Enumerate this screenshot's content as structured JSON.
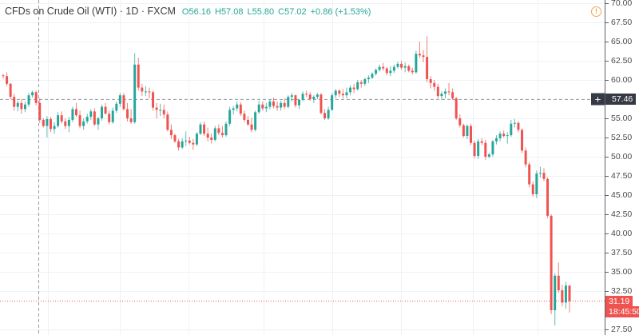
{
  "header": {
    "title": "CFDs on Crude Oil (WTI) · 1D · FXCM",
    "open": "O56.16",
    "high": "H57.08",
    "low": "L55.80",
    "close": "C57.02",
    "change": "+0.86 (+1.53%)"
  },
  "icons": {
    "warning": "!"
  },
  "axis": {
    "ticks": [
      "70.00",
      "67.50",
      "65.00",
      "62.50",
      "60.00",
      "55.00",
      "52.50",
      "50.00",
      "47.50",
      "45.00",
      "42.50",
      "40.00",
      "37.50",
      "35.00",
      "32.50",
      "27.50"
    ],
    "crosshair_price": "57.46",
    "crosshair_plus": "+",
    "last_price": "31.19",
    "countdown": "18:45:50"
  },
  "colors": {
    "up": "#26a69a",
    "down": "#ef5350",
    "grid": "#eef2f6",
    "crosshair": "#9598a1",
    "axis": "#5d606b"
  },
  "chart_data": {
    "type": "candlestick",
    "title": "CFDs on Crude Oil (WTI) · 1D · FXCM",
    "ylim": [
      27.5,
      70.0
    ],
    "y_ticks": [
      27.5,
      32.5,
      35.0,
      37.5,
      40.0,
      42.5,
      45.0,
      47.5,
      50.0,
      52.5,
      55.0,
      57.46,
      60.0,
      62.5,
      65.0,
      67.5,
      70.0
    ],
    "crosshair_price": 57.46,
    "last_price": 31.19,
    "legend_ohlc": {
      "open": 56.16,
      "high": 57.08,
      "low": 55.8,
      "close": 57.02,
      "change": 0.86,
      "change_pct": 1.53
    },
    "candles": [
      [
        60.6,
        60.8,
        60.2,
        60.5
      ],
      [
        60.5,
        61.0,
        59.2,
        59.5
      ],
      [
        59.5,
        59.6,
        57.5,
        57.8
      ],
      [
        57.8,
        58.2,
        56.0,
        56.5
      ],
      [
        56.5,
        57.3,
        55.9,
        57.0
      ],
      [
        57.0,
        57.5,
        55.6,
        56.2
      ],
      [
        56.2,
        57.2,
        55.8,
        56.8
      ],
      [
        56.8,
        58.3,
        56.5,
        58.0
      ],
      [
        58.0,
        58.6,
        57.7,
        58.4
      ],
      [
        58.4,
        58.6,
        56.7,
        57.0
      ],
      [
        57.0,
        57.6,
        54.4,
        54.8
      ],
      [
        54.8,
        55.0,
        53.8,
        54.0
      ],
      [
        54.0,
        55.3,
        52.5,
        54.9
      ],
      [
        54.9,
        55.2,
        53.2,
        53.6
      ],
      [
        53.6,
        54.5,
        53.0,
        54.0
      ],
      [
        54.0,
        55.8,
        53.8,
        55.4
      ],
      [
        55.4,
        55.9,
        54.3,
        54.6
      ],
      [
        54.6,
        55.0,
        53.6,
        54.0
      ],
      [
        54.0,
        55.2,
        53.2,
        54.8
      ],
      [
        54.8,
        56.5,
        54.5,
        56.2
      ],
      [
        56.2,
        57.0,
        55.2,
        55.4
      ],
      [
        55.4,
        56.0,
        53.7,
        54.0
      ],
      [
        54.0,
        55.0,
        53.5,
        54.6
      ],
      [
        54.6,
        55.6,
        54.3,
        55.2
      ],
      [
        55.2,
        56.2,
        54.8,
        55.9
      ],
      [
        55.9,
        56.3,
        54.0,
        54.2
      ],
      [
        54.2,
        55.2,
        53.5,
        55.0
      ],
      [
        55.0,
        56.8,
        54.7,
        56.5
      ],
      [
        56.5,
        57.0,
        55.5,
        55.6
      ],
      [
        55.6,
        56.0,
        54.2,
        54.5
      ],
      [
        54.5,
        56.4,
        54.3,
        56.0
      ],
      [
        56.0,
        57.2,
        55.7,
        56.9
      ],
      [
        56.9,
        58.3,
        56.5,
        58.0
      ],
      [
        58.0,
        58.3,
        56.0,
        56.2
      ],
      [
        56.2,
        57.0,
        54.6,
        55.0
      ],
      [
        55.0,
        56.2,
        54.3,
        54.5
      ],
      [
        54.5,
        63.5,
        54.3,
        62.0
      ],
      [
        62.0,
        62.9,
        58.6,
        59.0
      ],
      [
        59.0,
        59.5,
        57.9,
        58.5
      ],
      [
        58.5,
        59.2,
        57.9,
        58.5
      ],
      [
        58.5,
        59.0,
        57.6,
        58.4
      ],
      [
        58.4,
        58.6,
        56.0,
        56.4
      ],
      [
        56.4,
        57.0,
        55.0,
        56.1
      ],
      [
        56.1,
        56.9,
        55.3,
        56.1
      ],
      [
        56.1,
        56.8,
        55.0,
        55.5
      ],
      [
        55.5,
        55.9,
        53.3,
        53.5
      ],
      [
        53.5,
        54.2,
        52.3,
        52.8
      ],
      [
        52.8,
        53.0,
        51.8,
        52.0
      ],
      [
        52.0,
        52.3,
        50.8,
        51.2
      ],
      [
        51.2,
        52.4,
        51.0,
        52.0
      ],
      [
        52.0,
        53.3,
        51.4,
        52.1
      ],
      [
        52.1,
        52.6,
        51.6,
        51.8
      ],
      [
        51.8,
        52.3,
        50.9,
        51.6
      ],
      [
        51.6,
        53.2,
        51.4,
        53.0
      ],
      [
        53.0,
        54.5,
        52.8,
        54.2
      ],
      [
        54.2,
        54.6,
        52.7,
        53.0
      ],
      [
        53.0,
        53.8,
        52.0,
        52.5
      ],
      [
        52.5,
        53.0,
        51.7,
        52.2
      ],
      [
        52.2,
        54.0,
        52.0,
        53.7
      ],
      [
        53.7,
        54.2,
        52.8,
        53.1
      ],
      [
        53.1,
        54.0,
        52.5,
        52.8
      ],
      [
        52.8,
        54.6,
        52.6,
        54.3
      ],
      [
        54.3,
        56.5,
        54.0,
        56.1
      ],
      [
        56.1,
        56.6,
        55.5,
        56.3
      ],
      [
        56.3,
        57.2,
        55.9,
        56.8
      ],
      [
        56.8,
        57.1,
        55.3,
        55.6
      ],
      [
        55.6,
        56.0,
        54.5,
        54.8
      ],
      [
        54.8,
        55.3,
        54.0,
        54.2
      ],
      [
        54.2,
        55.1,
        53.2,
        53.5
      ],
      [
        53.5,
        56.0,
        53.3,
        55.8
      ],
      [
        55.8,
        57.3,
        55.6,
        56.8
      ],
      [
        56.8,
        57.2,
        56.0,
        56.3
      ],
      [
        56.3,
        57.0,
        55.8,
        56.5
      ],
      [
        56.5,
        57.5,
        56.2,
        57.2
      ],
      [
        57.2,
        57.7,
        56.3,
        56.6
      ],
      [
        56.6,
        57.2,
        56.0,
        56.4
      ],
      [
        56.4,
        57.3,
        56.0,
        57.0
      ],
      [
        57.0,
        57.6,
        56.2,
        56.5
      ],
      [
        56.5,
        58.0,
        56.3,
        57.8
      ],
      [
        57.8,
        58.3,
        57.2,
        58.0
      ],
      [
        58.0,
        58.1,
        56.4,
        56.7
      ],
      [
        56.7,
        57.5,
        56.2,
        57.4
      ],
      [
        57.4,
        58.5,
        57.2,
        58.2
      ],
      [
        58.2,
        58.6,
        57.8,
        58.1
      ],
      [
        58.1,
        58.4,
        57.3,
        57.5
      ],
      [
        57.5,
        58.0,
        57.0,
        57.8
      ],
      [
        57.8,
        58.3,
        57.5,
        58.1
      ],
      [
        58.1,
        58.3,
        55.5,
        55.7
      ],
      [
        55.7,
        56.2,
        54.8,
        55.0
      ],
      [
        55.0,
        56.5,
        54.8,
        56.1
      ],
      [
        56.1,
        58.3,
        56.0,
        58.0
      ],
      [
        58.0,
        58.8,
        57.6,
        58.6
      ],
      [
        58.6,
        58.8,
        57.8,
        58.2
      ],
      [
        58.2,
        58.8,
        57.6,
        58.0
      ],
      [
        58.0,
        59.0,
        57.6,
        58.4
      ],
      [
        58.4,
        59.3,
        58.0,
        59.0
      ],
      [
        59.0,
        59.5,
        58.3,
        58.8
      ],
      [
        58.8,
        60.0,
        58.6,
        59.7
      ],
      [
        59.7,
        60.0,
        59.0,
        59.5
      ],
      [
        59.5,
        60.3,
        59.2,
        60.1
      ],
      [
        60.1,
        60.6,
        59.6,
        60.3
      ],
      [
        60.3,
        61.0,
        60.1,
        60.8
      ],
      [
        60.8,
        61.5,
        60.6,
        61.3
      ],
      [
        61.3,
        62.0,
        61.1,
        61.7
      ],
      [
        61.7,
        62.2,
        61.2,
        61.5
      ],
      [
        61.5,
        61.7,
        60.6,
        60.9
      ],
      [
        60.9,
        61.8,
        60.5,
        61.2
      ],
      [
        61.2,
        62.0,
        60.9,
        61.7
      ],
      [
        61.7,
        62.4,
        61.5,
        62.1
      ],
      [
        62.1,
        62.5,
        61.3,
        61.6
      ],
      [
        61.6,
        62.3,
        61.0,
        61.8
      ],
      [
        61.8,
        62.0,
        61.0,
        61.2
      ],
      [
        61.2,
        61.6,
        60.7,
        61.0
      ],
      [
        61.0,
        63.8,
        60.8,
        63.4
      ],
      [
        63.4,
        65.0,
        62.9,
        63.2
      ],
      [
        63.2,
        63.9,
        62.3,
        63.0
      ],
      [
        63.0,
        65.7,
        59.7,
        60.1
      ],
      [
        60.1,
        60.5,
        58.9,
        59.6
      ],
      [
        59.6,
        60.0,
        58.6,
        59.1
      ],
      [
        59.1,
        59.5,
        57.6,
        57.9
      ],
      [
        57.9,
        58.5,
        57.4,
        58.2
      ],
      [
        58.2,
        58.9,
        57.6,
        58.5
      ],
      [
        58.5,
        59.6,
        58.0,
        58.4
      ],
      [
        58.4,
        58.9,
        57.4,
        57.6
      ],
      [
        57.6,
        57.8,
        54.8,
        55.0
      ],
      [
        55.0,
        55.5,
        53.8,
        54.1
      ],
      [
        54.1,
        54.3,
        52.5,
        52.7
      ],
      [
        52.7,
        54.2,
        52.3,
        54.0
      ],
      [
        54.0,
        54.3,
        51.5,
        51.8
      ],
      [
        51.8,
        52.1,
        49.8,
        50.1
      ],
      [
        50.1,
        52.3,
        49.7,
        52.0
      ],
      [
        52.0,
        52.4,
        51.5,
        51.8
      ],
      [
        51.8,
        52.2,
        49.6,
        50.0
      ],
      [
        50.0,
        50.5,
        49.8,
        50.3
      ],
      [
        50.3,
        52.2,
        50.0,
        52.0
      ],
      [
        52.0,
        52.8,
        51.6,
        52.4
      ],
      [
        52.4,
        53.3,
        52.0,
        53.0
      ],
      [
        53.0,
        53.4,
        52.5,
        52.7
      ],
      [
        52.7,
        53.2,
        51.7,
        52.8
      ],
      [
        52.8,
        54.8,
        52.6,
        54.3
      ],
      [
        54.3,
        54.9,
        53.8,
        54.4
      ],
      [
        54.4,
        54.6,
        53.2,
        53.5
      ],
      [
        53.5,
        53.7,
        50.5,
        50.8
      ],
      [
        50.8,
        51.2,
        48.6,
        49.0
      ],
      [
        49.0,
        49.3,
        46.0,
        46.4
      ],
      [
        46.4,
        46.8,
        44.8,
        45.1
      ],
      [
        45.1,
        48.2,
        44.6,
        47.8
      ],
      [
        47.8,
        48.7,
        47.3,
        47.9
      ],
      [
        47.9,
        48.5,
        46.8,
        47.1
      ],
      [
        47.1,
        47.3,
        42.0,
        42.3
      ],
      [
        42.3,
        42.5,
        29.5,
        30.0
      ],
      [
        30.0,
        34.8,
        28.0,
        34.5
      ],
      [
        34.5,
        36.2,
        32.3,
        32.6
      ],
      [
        32.6,
        33.3,
        30.5,
        31.0
      ],
      [
        31.0,
        33.7,
        30.2,
        33.2
      ],
      [
        33.2,
        33.3,
        29.7,
        31.19
      ]
    ]
  }
}
